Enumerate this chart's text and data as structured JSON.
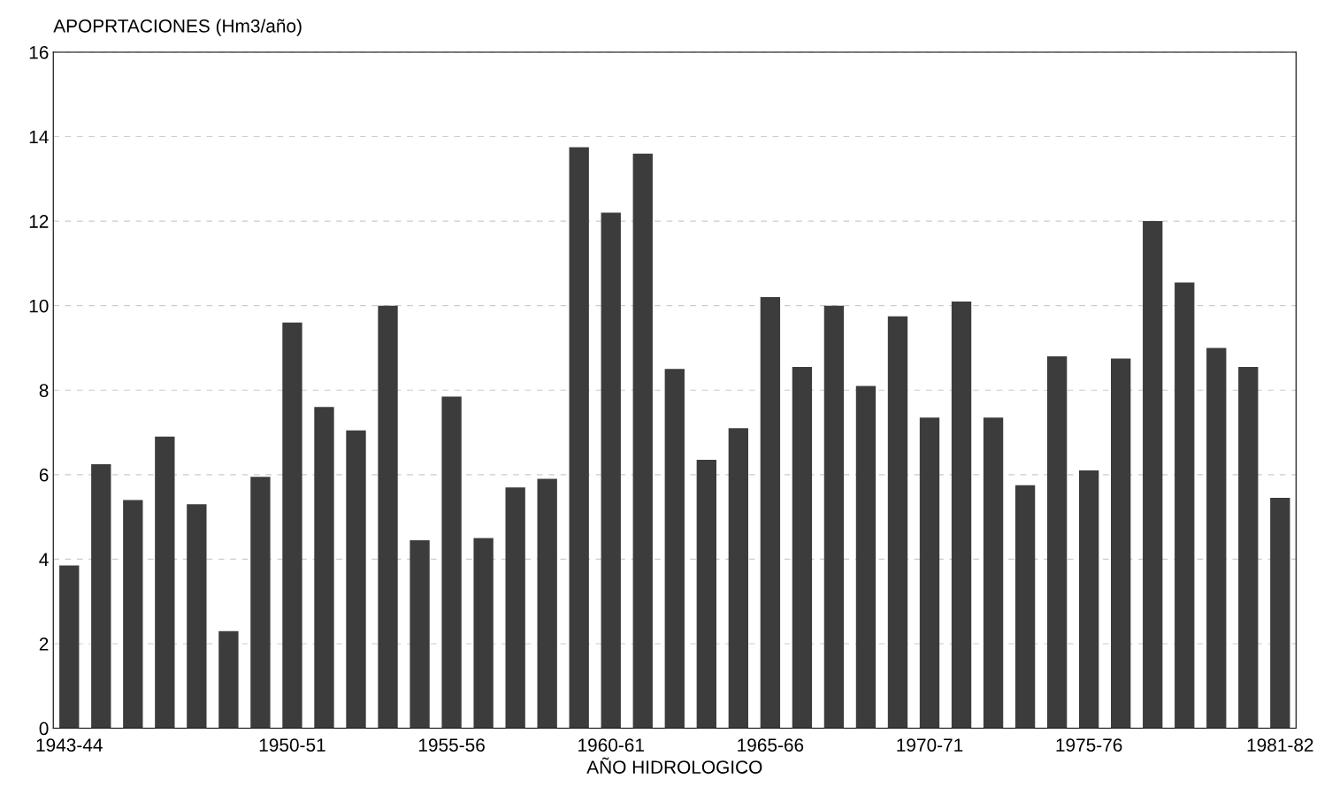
{
  "chart_data": {
    "type": "bar",
    "ylabel": "APOPRTACIONES (Hm3/año)",
    "xlabel": "AÑO HIDROLOGICO",
    "categories": [
      "1943-44",
      null,
      null,
      null,
      null,
      null,
      null,
      "1950-51",
      null,
      null,
      null,
      null,
      "1955-56",
      null,
      null,
      null,
      null,
      "1960-61",
      null,
      null,
      null,
      null,
      "1965-66",
      null,
      null,
      null,
      null,
      "1970-71",
      null,
      null,
      null,
      null,
      "1975-76",
      null,
      null,
      null,
      null,
      null,
      "1981-82"
    ],
    "values": [
      3.85,
      6.25,
      5.4,
      6.9,
      5.3,
      2.3,
      5.95,
      9.6,
      7.6,
      7.05,
      10.0,
      4.45,
      7.85,
      4.5,
      5.7,
      5.9,
      13.75,
      12.2,
      13.6,
      8.5,
      6.35,
      7.1,
      10.2,
      8.55,
      10.0,
      8.1,
      9.75,
      7.35,
      10.1,
      7.35,
      5.75,
      8.8,
      6.1,
      8.75,
      12.0,
      10.55,
      9.0,
      8.55,
      5.45
    ],
    "color": "#3c3c3c",
    "ylim": [
      0,
      16
    ],
    "yticks": [
      0,
      2,
      4,
      6,
      8,
      10,
      12,
      14,
      16
    ],
    "grid": "y"
  }
}
